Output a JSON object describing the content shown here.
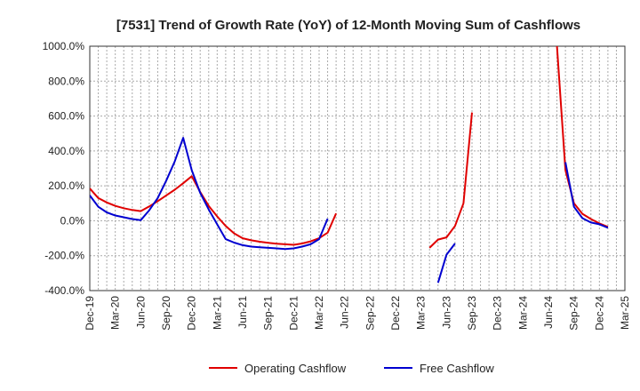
{
  "chart_data": {
    "type": "line",
    "title": "[7531]  Trend of Growth Rate (YoY) of 12-Month Moving Sum of Cashflows",
    "xlabel": "",
    "ylabel": "",
    "ylim": [
      -400,
      1000
    ],
    "y_ticks": [
      1000,
      800,
      600,
      400,
      200,
      0,
      -200,
      -400
    ],
    "y_tick_labels": [
      "1000.0%",
      "800.0%",
      "600.0%",
      "400.0%",
      "200.0%",
      "0.0%",
      "-200.0%",
      "-400.0%"
    ],
    "x_range": [
      "2019-12",
      "2025-03"
    ],
    "x_tick_labels": [
      "Dec-19",
      "Mar-20",
      "Jun-20",
      "Sep-20",
      "Dec-20",
      "Mar-21",
      "Jun-21",
      "Sep-21",
      "Dec-21",
      "Mar-22",
      "Jun-22",
      "Sep-22",
      "Dec-22",
      "Mar-23",
      "Jun-23",
      "Sep-23",
      "Dec-23",
      "Mar-24",
      "Jun-24",
      "Sep-24",
      "Dec-24",
      "Mar-25"
    ],
    "grid": true,
    "legend_position": "bottom",
    "series": [
      {
        "name": "Operating Cashflow",
        "color": "#e00000",
        "points": [
          [
            "2019-12",
            185
          ],
          [
            "2020-01",
            130
          ],
          [
            "2020-02",
            105
          ],
          [
            "2020-03",
            85
          ],
          [
            "2020-04",
            72
          ],
          [
            "2020-05",
            62
          ],
          [
            "2020-06",
            55
          ],
          [
            "2020-07",
            82
          ],
          [
            "2020-08",
            112
          ],
          [
            "2020-09",
            145
          ],
          [
            "2020-10",
            178
          ],
          [
            "2020-11",
            215
          ],
          [
            "2020-12",
            255
          ],
          [
            "2021-01",
            165
          ],
          [
            "2021-02",
            85
          ],
          [
            "2021-03",
            25
          ],
          [
            "2021-04",
            -30
          ],
          [
            "2021-05",
            -72
          ],
          [
            "2021-06",
            -100
          ],
          [
            "2021-07",
            -112
          ],
          [
            "2021-08",
            -120
          ],
          [
            "2021-09",
            -126
          ],
          [
            "2021-10",
            -131
          ],
          [
            "2021-11",
            -135
          ],
          [
            "2021-12",
            -138
          ],
          [
            "2022-01",
            -130
          ],
          [
            "2022-02",
            -118
          ],
          [
            "2022-03",
            -100
          ],
          [
            "2022-04",
            -68
          ],
          [
            "2022-05",
            42
          ],
          null,
          [
            "2023-04",
            -155
          ],
          [
            "2023-05",
            -108
          ],
          [
            "2023-06",
            -95
          ],
          [
            "2023-07",
            -30
          ],
          [
            "2023-08",
            100
          ],
          [
            "2023-09",
            620
          ],
          null,
          [
            "2024-07",
            1000
          ],
          [
            "2024-08",
            290
          ],
          [
            "2024-09",
            100
          ],
          [
            "2024-10",
            40
          ],
          [
            "2024-11",
            10
          ],
          [
            "2024-12",
            -15
          ],
          [
            "2025-01",
            -35
          ]
        ]
      },
      {
        "name": "Free Cashflow",
        "color": "#0000d0",
        "points": [
          [
            "2019-12",
            145
          ],
          [
            "2020-01",
            80
          ],
          [
            "2020-02",
            48
          ],
          [
            "2020-03",
            30
          ],
          [
            "2020-04",
            20
          ],
          [
            "2020-05",
            10
          ],
          [
            "2020-06",
            3
          ],
          [
            "2020-07",
            60
          ],
          [
            "2020-08",
            130
          ],
          [
            "2020-09",
            230
          ],
          [
            "2020-10",
            340
          ],
          [
            "2020-11",
            475
          ],
          [
            "2020-12",
            290
          ],
          [
            "2021-01",
            160
          ],
          [
            "2021-02",
            65
          ],
          [
            "2021-03",
            -20
          ],
          [
            "2021-04",
            -105
          ],
          [
            "2021-05",
            -125
          ],
          [
            "2021-06",
            -140
          ],
          [
            "2021-07",
            -148
          ],
          [
            "2021-08",
            -152
          ],
          [
            "2021-09",
            -155
          ],
          [
            "2021-10",
            -158
          ],
          [
            "2021-11",
            -162
          ],
          [
            "2021-12",
            -158
          ],
          [
            "2022-01",
            -148
          ],
          [
            "2022-02",
            -135
          ],
          [
            "2022-03",
            -105
          ],
          [
            "2022-04",
            12
          ],
          null,
          [
            "2023-05",
            -355
          ],
          [
            "2023-06",
            -195
          ],
          [
            "2023-07",
            -130
          ],
          null,
          [
            "2024-08",
            335
          ],
          [
            "2024-09",
            80
          ],
          [
            "2024-10",
            15
          ],
          [
            "2024-11",
            -10
          ],
          [
            "2024-12",
            -20
          ],
          [
            "2025-01",
            -40
          ]
        ]
      }
    ]
  }
}
